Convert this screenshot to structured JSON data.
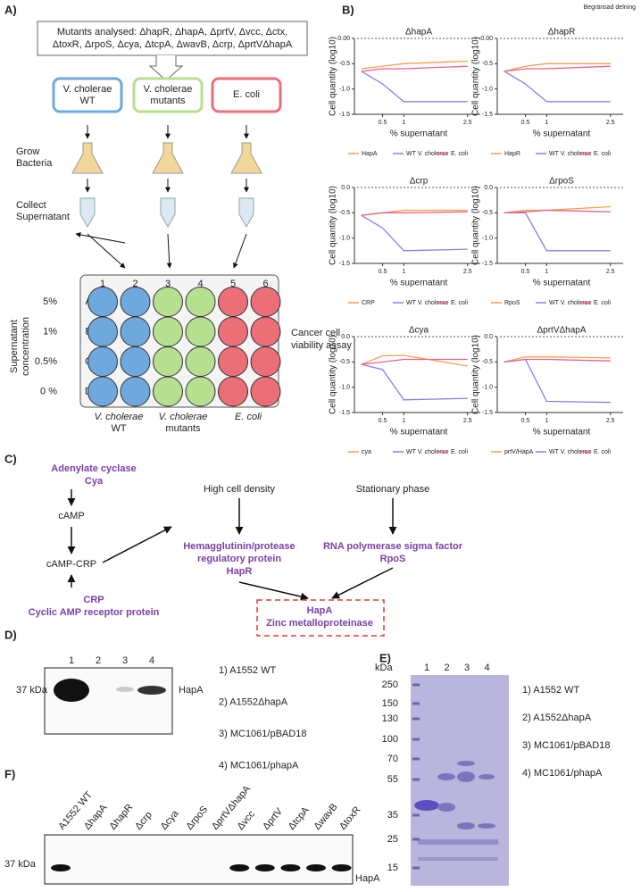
{
  "header": {
    "note": "Begränsad delning"
  },
  "panel_labels": [
    "A)",
    "B)",
    "C)",
    "D)",
    "E)",
    "F)"
  ],
  "panel_a": {
    "mutants": [
      "Mutants analysed: ΔhapR, ΔhapA, ΔprtV, Δvcc, Δctx,",
      "ΔtoxR, ΔrpoS, Δcya, ΔtcpA, ΔwavB, Δcrp, ΔprtVΔhapA"
    ],
    "groups": [
      {
        "name": "V. cholerae",
        "sub": "WT",
        "color": "#6fa8dc"
      },
      {
        "name": "V. cholerae",
        "sub": "mutants",
        "color": "#b6e08f"
      },
      {
        "name": "E. coli",
        "sub": null,
        "color": "#ec6f78"
      }
    ],
    "steps": [
      [
        "Grow",
        "Bacteria"
      ],
      [
        "Collect",
        "Supernatant"
      ]
    ],
    "plate": {
      "columns": [
        "1",
        "2",
        "3",
        "4",
        "5",
        "6"
      ],
      "rows": [
        "A",
        "B",
        "C",
        "D"
      ],
      "concentrations": [
        "5%",
        "1%",
        "0.5%",
        "0 %"
      ],
      "y_title": [
        "Supernatant",
        "concentration"
      ],
      "assay": [
        "Cancer cell",
        "viability assay"
      ],
      "bottom_labels": [
        [
          "V. cholerae",
          "WT"
        ],
        [
          "V. cholerae",
          "mutants"
        ],
        [
          "E. coli",
          null
        ]
      ]
    }
  },
  "chart_data": [
    {
      "type": "line",
      "title": "ΔhapA",
      "x_label": "% supernatant",
      "y_label": "Cell quantity (log10)",
      "x": [
        0,
        0.5,
        1,
        2.5
      ],
      "xlim": [
        -0.1,
        2.8
      ],
      "xticks": [
        0.5,
        1,
        2.5
      ],
      "ylim": [
        -1.5,
        0
      ],
      "yticks": [
        {
          "value": 0,
          "label": "0.00"
        },
        -0.5,
        {
          "value": -1,
          "label": "-1.0"
        },
        -1.5
      ],
      "hline": 0,
      "series": [
        {
          "name": "HapA",
          "color": "#f5a04a",
          "values": [
            -0.6,
            -0.55,
            -0.5,
            -0.45
          ]
        },
        {
          "name": "WT V. cholerae",
          "color": "#8a7cf0",
          "values": [
            -0.65,
            -0.9,
            -1.25,
            -1.25
          ]
        },
        {
          "name": "E. coli",
          "color": "#f0608a",
          "values": [
            -0.65,
            -0.6,
            -0.6,
            -0.55
          ]
        }
      ]
    },
    {
      "type": "line",
      "title": "ΔhapR",
      "x_label": "% supernatant",
      "y_label": "Cell quantity (log10)",
      "x": [
        0,
        0.5,
        1,
        2.5
      ],
      "xlim": [
        -0.1,
        2.8
      ],
      "xticks": [
        0.5,
        1,
        2.5
      ],
      "ylim": [
        -1.5,
        0
      ],
      "yticks": [
        {
          "value": 0,
          "label": "0.00"
        },
        -0.5,
        {
          "value": -1,
          "label": "-1.0"
        },
        -1.5
      ],
      "hline": 0,
      "series": [
        {
          "name": "HapR",
          "color": "#f5a04a",
          "values": [
            -0.65,
            -0.55,
            -0.5,
            -0.5
          ]
        },
        {
          "name": "WT V. cholerae",
          "color": "#8a7cf0",
          "values": [
            -0.65,
            -0.9,
            -1.25,
            -1.25
          ]
        },
        {
          "name": "E. coli",
          "color": "#f0608a",
          "values": [
            -0.65,
            -0.6,
            -0.6,
            -0.55
          ]
        }
      ]
    },
    {
      "type": "line",
      "title": "Δcrp",
      "x_label": "% supernatant",
      "y_label": "Cell quantity (log10)",
      "x": [
        0,
        0.5,
        1,
        2.5
      ],
      "xlim": [
        -0.1,
        2.8
      ],
      "xticks": [
        0.5,
        1,
        2.5
      ],
      "ylim": [
        -1.5,
        0
      ],
      "yticks": [
        {
          "value": 0,
          "label": "0.0"
        },
        -0.5,
        {
          "value": -1,
          "label": "-1.0"
        },
        -1.5
      ],
      "hline": 0,
      "series": [
        {
          "name": "CRP",
          "color": "#f5a04a",
          "values": [
            -0.55,
            -0.5,
            -0.45,
            -0.45
          ]
        },
        {
          "name": "WT V. cholerae",
          "color": "#8a7cf0",
          "values": [
            -0.55,
            -0.8,
            -1.25,
            -1.22
          ]
        },
        {
          "name": "E. coli",
          "color": "#f0608a",
          "values": [
            -0.55,
            -0.5,
            -0.5,
            -0.48
          ]
        }
      ]
    },
    {
      "type": "line",
      "title": "ΔrpoS",
      "x_label": "% supernatant",
      "y_label": "Cell quantity (log10)",
      "x": [
        0,
        0.5,
        1,
        2.5
      ],
      "xlim": [
        -0.1,
        2.8
      ],
      "xticks": [
        0.5,
        1,
        2.5
      ],
      "ylim": [
        -1.5,
        0
      ],
      "yticks": [
        {
          "value": 0,
          "label": "0.0"
        },
        -0.5,
        {
          "value": -1,
          "label": "-1.0"
        },
        -1.5
      ],
      "hline": 0,
      "series": [
        {
          "name": "RpoS",
          "color": "#f5a04a",
          "values": [
            -0.5,
            -0.45,
            -0.45,
            -0.38
          ]
        },
        {
          "name": "WT V. cholerae",
          "color": "#8a7cf0",
          "values": [
            -0.5,
            -0.5,
            -1.25,
            -1.25
          ]
        },
        {
          "name": "E. coli",
          "color": "#f0608a",
          "values": [
            -0.5,
            -0.48,
            -0.45,
            -0.48
          ]
        }
      ]
    },
    {
      "type": "line",
      "title": "Δcya",
      "x_label": "% supernatant",
      "y_label": "Cell quantity (log10)",
      "x": [
        0,
        0.5,
        1,
        2.5
      ],
      "xlim": [
        -0.1,
        2.8
      ],
      "xticks": [
        0.5,
        1,
        2.5
      ],
      "ylim": [
        -1.5,
        0
      ],
      "yticks": [
        {
          "value": 0,
          "label": "0.0"
        },
        -0.5,
        {
          "value": -1,
          "label": "-1.0"
        },
        -1.5
      ],
      "hline": 0,
      "series": [
        {
          "name": "cya",
          "color": "#f5a04a",
          "values": [
            -0.55,
            -0.38,
            -0.37,
            -0.58
          ]
        },
        {
          "name": "WT V. cholerae",
          "color": "#8a7cf0",
          "values": [
            -0.55,
            -0.65,
            -1.25,
            -1.22
          ]
        },
        {
          "name": "E. coli",
          "color": "#f0608a",
          "values": [
            -0.55,
            -0.5,
            -0.45,
            -0.45
          ]
        }
      ]
    },
    {
      "type": "line",
      "title": "ΔprtVΔhapA",
      "x_label": "% supernatant",
      "y_label": "Cell quantity (log10)",
      "x": [
        0,
        0.5,
        1,
        2.5
      ],
      "xlim": [
        -0.1,
        2.8
      ],
      "xticks": [
        0.5,
        1,
        2.5
      ],
      "ylim": [
        -1.5,
        0
      ],
      "yticks": [
        {
          "value": 0,
          "label": "0.0"
        },
        -0.5,
        {
          "value": -1,
          "label": "-1.0"
        },
        -1.5
      ],
      "hline": 0,
      "series": [
        {
          "name": "prtV/HapA",
          "color": "#f5a04a",
          "values": [
            -0.5,
            -0.4,
            -0.4,
            -0.42
          ]
        },
        {
          "name": "WT V. cholerae",
          "color": "#8a7cf0",
          "values": [
            -0.5,
            -0.45,
            -1.28,
            -1.3
          ]
        },
        {
          "name": "E. coli",
          "color": "#f0608a",
          "values": [
            -0.5,
            -0.45,
            -0.45,
            -0.48
          ]
        }
      ]
    }
  ],
  "panel_c": {
    "nodes": [
      {
        "lines": [
          "Adenylate cyclase",
          "Cya"
        ],
        "style": "protein"
      },
      {
        "lines": [
          "cAMP"
        ],
        "style": "plain"
      },
      {
        "lines": [
          "cAMP-CRP"
        ],
        "style": "plain"
      },
      {
        "lines": [
          "CRP",
          "Cyclic AMP receptor protein"
        ],
        "style": "protein"
      },
      {
        "lines": [
          "High cell density"
        ],
        "style": "plain"
      },
      {
        "lines": [
          "Hemagglutinin/protease",
          "regulatory protein",
          "HapR"
        ],
        "style": "protein"
      },
      {
        "lines": [
          "Stationary phase"
        ],
        "style": "plain"
      },
      {
        "lines": [
          "RNA polymerase sigma factor",
          "RpoS"
        ],
        "style": "protein"
      },
      {
        "lines": [
          "HapA",
          "Zinc metalloproteinase"
        ],
        "style": "protein"
      }
    ]
  },
  "panel_d": {
    "lanes": [
      "1",
      "2",
      "3",
      "4"
    ],
    "size": "37 kDa",
    "band": "HapA",
    "legend": [
      "1) A1552 WT",
      "2) A1552ΔhapA",
      "3) MC1061/pBAD18",
      "4) MC1061/phapA"
    ]
  },
  "panel_e": {
    "unit": "kDa",
    "markers": [
      "250",
      "150",
      "130",
      "100",
      "70",
      "55",
      "35",
      "25",
      "15"
    ],
    "lanes": [
      "1",
      "2",
      "3",
      "4"
    ],
    "legend": [
      "1) A1552 WT",
      "2) A1552ΔhapA",
      "3) MC1061/pBAD18",
      "4) MC1061/phapA"
    ]
  },
  "panel_f": {
    "lanes": [
      "A1552 WT",
      "ΔhapA",
      "ΔhapR",
      "Δcrp",
      "Δcya",
      "ΔrpoS",
      "ΔprtVΔhapA",
      "Δvcc",
      "ΔprtV",
      "ΔtcpA",
      "ΔwavB",
      "ΔtoxR"
    ],
    "size": "37 kDa",
    "band": "HapA"
  }
}
